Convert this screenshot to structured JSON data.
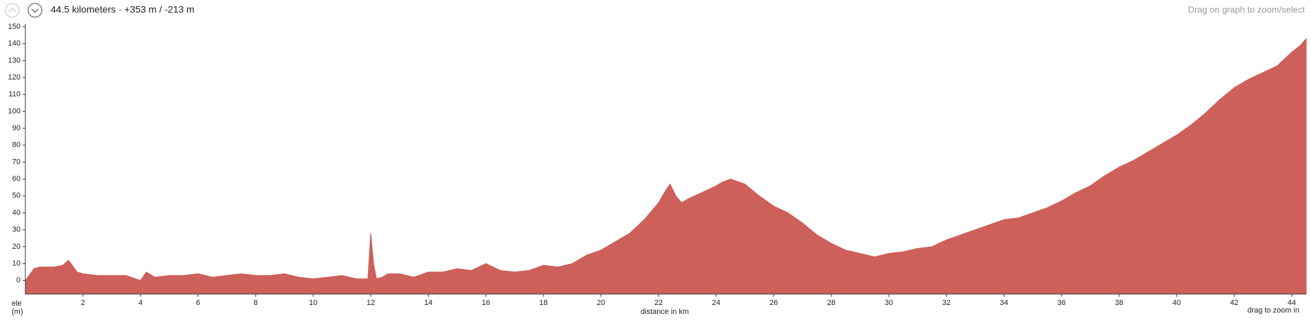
{
  "header": {
    "summary": "44.5 kilometers · +353 m / -213 m",
    "hint": "Drag on graph to zoom/select"
  },
  "chart_data": {
    "type": "area",
    "color": "#cd605a",
    "x_label": "distance in km",
    "y_label_lines": [
      "ele",
      "(m)"
    ],
    "footer_hint": "drag to zoom in",
    "x": [
      0,
      0.3,
      0.5,
      1,
      1.3,
      1.5,
      1.8,
      2,
      2.5,
      3,
      3.5,
      4,
      4.2,
      4.5,
      5,
      5.5,
      6,
      6.5,
      7,
      7.5,
      8,
      8.5,
      9,
      9.5,
      10,
      10.5,
      11,
      11.5,
      11.9,
      12,
      12.1,
      12.2,
      12.4,
      12.6,
      13,
      13.5,
      14,
      14.5,
      15,
      15.5,
      16,
      16.5,
      17,
      17.5,
      18,
      18.5,
      19,
      19.5,
      20,
      20.5,
      21,
      21.5,
      22,
      22.2,
      22.4,
      22.6,
      22.8,
      23,
      23.5,
      24,
      24.2,
      24.5,
      25,
      25.5,
      26,
      26.5,
      27,
      27.5,
      28,
      28.5,
      29,
      29.5,
      30,
      30.5,
      31,
      31.5,
      32,
      32.5,
      33,
      33.5,
      34,
      34.5,
      35,
      35.5,
      36,
      36.5,
      37,
      37.5,
      38,
      38.5,
      39,
      39.5,
      40,
      40.5,
      41,
      41.5,
      42,
      42.5,
      43,
      43.5,
      44,
      44.3,
      44.5
    ],
    "y": [
      0,
      7,
      8,
      8,
      9,
      12,
      5,
      4,
      3,
      3,
      3,
      0,
      5,
      2,
      3,
      3,
      4,
      2,
      3,
      4,
      3,
      3,
      4,
      2,
      1,
      2,
      3,
      1,
      1,
      28,
      10,
      1,
      2,
      4,
      4,
      2,
      5,
      5,
      7,
      6,
      10,
      6,
      5,
      6,
      9,
      8,
      10,
      15,
      18,
      23,
      28,
      36,
      46,
      52,
      57,
      50,
      46,
      48,
      52,
      56,
      58,
      60,
      57,
      50,
      44,
      40,
      34,
      27,
      22,
      18,
      16,
      14,
      16,
      17,
      19,
      20,
      24,
      27,
      30,
      33,
      36,
      37,
      40,
      43,
      47,
      52,
      56,
      62,
      67,
      71,
      76,
      81,
      86,
      92,
      99,
      107,
      114,
      119,
      123,
      127,
      135,
      139,
      143
    ],
    "xlim": [
      0,
      44.5
    ],
    "ylim": [
      -8,
      150
    ],
    "xticks": [
      2,
      4,
      6,
      8,
      10,
      12,
      14,
      16,
      18,
      20,
      22,
      24,
      26,
      28,
      30,
      32,
      34,
      36,
      38,
      40,
      42,
      44
    ],
    "yticks": [
      0,
      10,
      20,
      30,
      40,
      50,
      60,
      70,
      80,
      90,
      100,
      110,
      120,
      130,
      140,
      150
    ]
  }
}
